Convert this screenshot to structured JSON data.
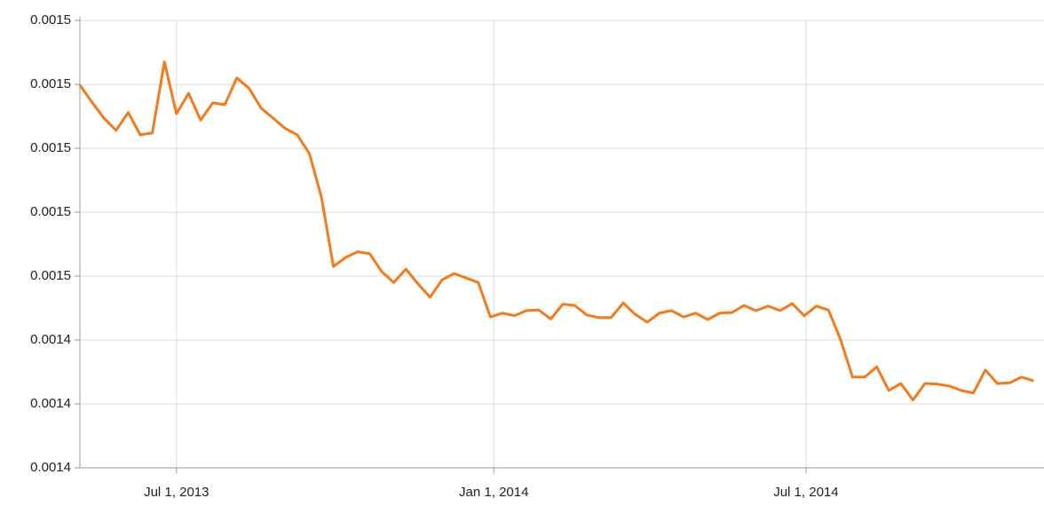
{
  "chart_data": {
    "type": "line",
    "color": "#f57a1a",
    "grid": true,
    "x": [
      "2013-05-06",
      "2013-05-13",
      "2013-05-20",
      "2013-05-27",
      "2013-06-03",
      "2013-06-10",
      "2013-06-17",
      "2013-06-24",
      "2013-07-01",
      "2013-07-08",
      "2013-07-15",
      "2013-07-22",
      "2013-07-29",
      "2013-08-05",
      "2013-08-12",
      "2013-08-19",
      "2013-08-26",
      "2013-09-02",
      "2013-09-09",
      "2013-09-16",
      "2013-09-23",
      "2013-09-30",
      "2013-10-07",
      "2013-10-14",
      "2013-10-21",
      "2013-10-28",
      "2013-11-04",
      "2013-11-11",
      "2013-11-18",
      "2013-11-25",
      "2013-12-02",
      "2013-12-09",
      "2013-12-16",
      "2013-12-23",
      "2013-12-30",
      "2014-01-06",
      "2014-01-13",
      "2014-01-20",
      "2014-01-27",
      "2014-02-03",
      "2014-02-10",
      "2014-02-17",
      "2014-02-24",
      "2014-03-03",
      "2014-03-10",
      "2014-03-17",
      "2014-03-24",
      "2014-03-31",
      "2014-04-07",
      "2014-04-14",
      "2014-04-21",
      "2014-04-28",
      "2014-05-05",
      "2014-05-12",
      "2014-05-19",
      "2014-05-26",
      "2014-06-02",
      "2014-06-09",
      "2014-06-16",
      "2014-06-23",
      "2014-06-30",
      "2014-07-07",
      "2014-07-14",
      "2014-07-21",
      "2014-07-28",
      "2014-08-04",
      "2014-08-11",
      "2014-08-18",
      "2014-08-25",
      "2014-09-01",
      "2014-09-08",
      "2014-09-15",
      "2014-09-22",
      "2014-09-29",
      "2014-10-06",
      "2014-10-13",
      "2014-10-20",
      "2014-10-27",
      "2014-11-03",
      "2014-11-10"
    ],
    "values": [
      0.0014799,
      0.0014772,
      0.0014747,
      0.0014728,
      0.0014756,
      0.0014721,
      0.0014724,
      0.0014835,
      0.0014754,
      0.0014786,
      0.0014744,
      0.0014771,
      0.0014768,
      0.001481,
      0.0014794,
      0.0014763,
      0.0014747,
      0.0014731,
      0.0014721,
      0.0014692,
      0.0014624,
      0.0014515,
      0.0014529,
      0.0014538,
      0.0014535,
      0.0014507,
      0.001449,
      0.0014511,
      0.0014488,
      0.0014467,
      0.0014494,
      0.0014504,
      0.0014497,
      0.001449,
      0.0014436,
      0.0014442,
      0.0014438,
      0.0014446,
      0.0014447,
      0.0014433,
      0.0014456,
      0.0014454,
      0.0014439,
      0.0014435,
      0.0014435,
      0.0014458,
      0.001444,
      0.0014428,
      0.0014442,
      0.0014446,
      0.0014436,
      0.0014442,
      0.0014432,
      0.0014442,
      0.0014443,
      0.0014454,
      0.0014446,
      0.0014453,
      0.0014446,
      0.0014457,
      0.0014438,
      0.0014453,
      0.0014447,
      0.0014401,
      0.0014342,
      0.0014342,
      0.0014358,
      0.0014321,
      0.0014332,
      0.0014306,
      0.0014332,
      0.0014331,
      0.0014328,
      0.0014321,
      0.0014317,
      0.0014353,
      0.0014332,
      0.0014333,
      0.0014342,
      0.0014336
    ],
    "xlim": [
      "2013-05-06",
      "2014-11-16"
    ],
    "xticks": [
      {
        "value": "2013-07-01",
        "label": "Jul 1, 2013"
      },
      {
        "value": "2014-01-01",
        "label": "Jan 1, 2014"
      },
      {
        "value": "2014-07-01",
        "label": "Jul 1, 2014"
      }
    ],
    "ylim": [
      0.00142,
      0.00149
    ],
    "yticks": [
      {
        "value": 0.00142,
        "label": "0.0014"
      },
      {
        "value": 0.00143,
        "label": "0.0014"
      },
      {
        "value": 0.00144,
        "label": "0.0014"
      },
      {
        "value": 0.00145,
        "label": "0.0015"
      },
      {
        "value": 0.00146,
        "label": "0.0015"
      },
      {
        "value": 0.00147,
        "label": "0.0015"
      },
      {
        "value": 0.00148,
        "label": "0.0015"
      },
      {
        "value": 0.00149,
        "label": "0.0015"
      }
    ]
  }
}
